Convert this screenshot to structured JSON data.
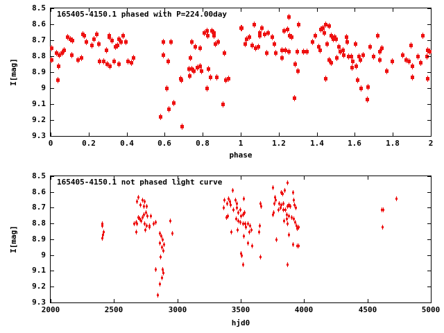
{
  "colors": {
    "marker": "#ee1111",
    "axis": "#000000",
    "background": "#ffffff"
  },
  "chart_data": [
    {
      "type": "scatter",
      "title": "165405-4150.1 phased with P=224.00day",
      "xlabel": "phase",
      "ylabel": "I[mag]",
      "xlim": [
        0,
        2
      ],
      "ylim": [
        8.5,
        9.3
      ],
      "y_axis_inverted_magnitudes": true,
      "grid": false,
      "legend": "none",
      "marker": "big",
      "xtick_values": [
        0,
        0.2,
        0.4,
        0.6,
        0.8,
        1,
        1.2,
        1.4,
        1.6,
        1.8,
        2
      ],
      "xtick_labels": [
        "0",
        "0.2",
        "0.4",
        "0.6",
        "0.8",
        "1",
        "1.2",
        "1.4",
        "1.6",
        "1.8",
        "2"
      ],
      "ytick_values": [
        8.5,
        8.6,
        8.7,
        8.8,
        8.9,
        9.0,
        9.1,
        9.2,
        9.3
      ],
      "ytick_labels": [
        "8.5",
        "8.6",
        "8.7",
        "8.8",
        "8.9",
        "9",
        "9.1",
        "9.2",
        "9.3"
      ],
      "points": [
        [
          0.003,
          8.82
        ],
        [
          0.005,
          8.75
        ],
        [
          0.029,
          8.78
        ],
        [
          0.035,
          8.95
        ],
        [
          0.041,
          8.86
        ],
        [
          0.044,
          8.79
        ],
        [
          0.059,
          8.78
        ],
        [
          0.068,
          8.76
        ],
        [
          0.087,
          8.68
        ],
        [
          0.102,
          8.69
        ],
        [
          0.108,
          8.79
        ],
        [
          0.114,
          8.7
        ],
        [
          0.144,
          8.82
        ],
        [
          0.16,
          8.81
        ],
        [
          0.168,
          8.66
        ],
        [
          0.177,
          8.67
        ],
        [
          0.187,
          8.71
        ],
        [
          0.217,
          8.73
        ],
        [
          0.225,
          8.69
        ],
        [
          0.241,
          8.66
        ],
        [
          0.251,
          8.72
        ],
        [
          0.257,
          8.83
        ],
        [
          0.278,
          8.83
        ],
        [
          0.293,
          8.76
        ],
        [
          0.296,
          8.85
        ],
        [
          0.305,
          8.67
        ],
        [
          0.308,
          8.68
        ],
        [
          0.31,
          8.86
        ],
        [
          0.32,
          8.7
        ],
        [
          0.332,
          8.83
        ],
        [
          0.338,
          8.74
        ],
        [
          0.35,
          8.73
        ],
        [
          0.356,
          8.85
        ],
        [
          0.356,
          8.69
        ],
        [
          0.368,
          8.71
        ],
        [
          0.378,
          8.67
        ],
        [
          0.393,
          8.71
        ],
        [
          0.405,
          8.83
        ],
        [
          0.423,
          8.84
        ],
        [
          0.435,
          8.81
        ],
        [
          0.577,
          9.18
        ],
        [
          0.593,
          8.71
        ],
        [
          0.593,
          8.79
        ],
        [
          0.608,
          9.0
        ],
        [
          0.617,
          8.83
        ],
        [
          0.619,
          9.13
        ],
        [
          0.633,
          8.71
        ],
        [
          0.645,
          9.09
        ],
        [
          0.681,
          8.94
        ],
        [
          0.686,
          8.95
        ],
        [
          0.69,
          9.24
        ],
        [
          0.726,
          8.88
        ],
        [
          0.73,
          8.92
        ],
        [
          0.735,
          8.81
        ],
        [
          0.742,
          8.71
        ],
        [
          0.742,
          8.88
        ],
        [
          0.753,
          8.89
        ],
        [
          0.76,
          8.74
        ],
        [
          0.771,
          8.87
        ],
        [
          0.783,
          8.75
        ],
        [
          0.783,
          8.86
        ],
        [
          0.793,
          8.89
        ],
        [
          0.807,
          8.65
        ],
        [
          0.82,
          8.64
        ],
        [
          0.82,
          9.0
        ],
        [
          0.823,
          8.67
        ],
        [
          0.827,
          8.88
        ],
        [
          0.841,
          8.93
        ],
        [
          0.847,
          8.64
        ],
        [
          0.856,
          8.67
        ],
        [
          0.859,
          8.65
        ],
        [
          0.865,
          8.72
        ],
        [
          0.871,
          8.93
        ],
        [
          0.88,
          8.71
        ],
        [
          0.905,
          9.1
        ],
        [
          0.914,
          8.78
        ],
        [
          0.92,
          8.95
        ],
        [
          0.933,
          8.94
        ],
        [
          0.999,
          8.62
        ],
        [
          1.003,
          8.62
        ],
        [
          1.023,
          8.72
        ],
        [
          1.029,
          8.69
        ],
        [
          1.044,
          8.68
        ],
        [
          1.059,
          8.73
        ],
        [
          1.068,
          8.6
        ],
        [
          1.075,
          8.75
        ],
        [
          1.09,
          8.74
        ],
        [
          1.1,
          8.65
        ],
        [
          1.1,
          8.67
        ],
        [
          1.108,
          8.62
        ],
        [
          1.124,
          8.66
        ],
        [
          1.136,
          8.78
        ],
        [
          1.141,
          8.65
        ],
        [
          1.163,
          8.68
        ],
        [
          1.177,
          8.72
        ],
        [
          1.181,
          8.78
        ],
        [
          1.217,
          8.81
        ],
        [
          1.217,
          8.76
        ],
        [
          1.225,
          8.64
        ],
        [
          1.235,
          8.76
        ],
        [
          1.245,
          8.63
        ],
        [
          1.25,
          8.77
        ],
        [
          1.251,
          8.55
        ],
        [
          1.257,
          8.67
        ],
        [
          1.265,
          8.68
        ],
        [
          1.281,
          9.06
        ],
        [
          1.286,
          8.85
        ],
        [
          1.294,
          8.77
        ],
        [
          1.298,
          8.89
        ],
        [
          1.302,
          8.6
        ],
        [
          1.33,
          8.77
        ],
        [
          1.347,
          8.77
        ],
        [
          1.375,
          8.71
        ],
        [
          1.39,
          8.67
        ],
        [
          1.407,
          8.74
        ],
        [
          1.417,
          8.76
        ],
        [
          1.419,
          8.63
        ],
        [
          1.429,
          8.62
        ],
        [
          1.439,
          8.65
        ],
        [
          1.444,
          8.94
        ],
        [
          1.447,
          8.6
        ],
        [
          1.451,
          8.72
        ],
        [
          1.463,
          8.61
        ],
        [
          1.463,
          8.82
        ],
        [
          1.475,
          8.67
        ],
        [
          1.475,
          8.84
        ],
        [
          1.484,
          8.69
        ],
        [
          1.492,
          8.68
        ],
        [
          1.499,
          8.69
        ],
        [
          1.504,
          8.81
        ],
        [
          1.515,
          8.74
        ],
        [
          1.523,
          8.77
        ],
        [
          1.537,
          8.76
        ],
        [
          1.539,
          8.79
        ],
        [
          1.555,
          8.68
        ],
        [
          1.559,
          8.71
        ],
        [
          1.567,
          8.8
        ],
        [
          1.579,
          8.8
        ],
        [
          1.583,
          8.87
        ],
        [
          1.588,
          8.83
        ],
        [
          1.604,
          8.72
        ],
        [
          1.607,
          8.86
        ],
        [
          1.612,
          8.95
        ],
        [
          1.62,
          8.8
        ],
        [
          1.628,
          8.82
        ],
        [
          1.632,
          9.0
        ],
        [
          1.644,
          8.79
        ],
        [
          1.664,
          9.07
        ],
        [
          1.668,
          8.99
        ],
        [
          1.68,
          8.74
        ],
        [
          1.697,
          8.8
        ],
        [
          1.719,
          8.67
        ],
        [
          1.731,
          8.77
        ],
        [
          1.731,
          8.82
        ],
        [
          1.741,
          8.75
        ],
        [
          1.765,
          8.89
        ],
        [
          1.794,
          8.83
        ],
        [
          1.85,
          8.79
        ],
        [
          1.87,
          8.82
        ],
        [
          1.882,
          8.83
        ],
        [
          1.894,
          8.73
        ],
        [
          1.903,
          8.86
        ],
        [
          1.903,
          8.93
        ],
        [
          1.931,
          8.8
        ],
        [
          1.947,
          8.84
        ],
        [
          1.956,
          8.67
        ],
        [
          1.979,
          8.8
        ],
        [
          1.983,
          8.76
        ],
        [
          1.983,
          8.94
        ],
        [
          1.992,
          8.77
        ]
      ]
    },
    {
      "type": "scatter",
      "title": "165405-4150.1 not phased light curve",
      "xlabel": "hjd0",
      "ylabel": "I[mag]",
      "xlim": [
        2000,
        5000
      ],
      "ylim": [
        8.5,
        9.3
      ],
      "y_axis_inverted_magnitudes": true,
      "grid": false,
      "legend": "none",
      "marker": "small",
      "xtick_values": [
        2000,
        2500,
        3000,
        3500,
        4000,
        4500,
        5000
      ],
      "xtick_labels": [
        "2000",
        "2500",
        "3000",
        "3500",
        "4000",
        "4500",
        "5000"
      ],
      "ytick_values": [
        8.5,
        8.6,
        8.7,
        8.8,
        8.9,
        9.0,
        9.1,
        9.2,
        9.3
      ],
      "ytick_labels": [
        "8.5",
        "8.6",
        "8.7",
        "8.8",
        "8.9",
        "9",
        "9.1",
        "9.2",
        "9.3"
      ],
      "points": [
        [
          2403,
          8.8
        ],
        [
          2407,
          8.81
        ],
        [
          2407,
          8.89
        ],
        [
          2411,
          8.87
        ],
        [
          2416,
          8.85
        ],
        [
          2658,
          8.8
        ],
        [
          2671,
          8.79
        ],
        [
          2671,
          8.85
        ],
        [
          2680,
          8.66
        ],
        [
          2680,
          8.8
        ],
        [
          2689,
          8.63
        ],
        [
          2689,
          8.76
        ],
        [
          2702,
          8.77
        ],
        [
          2707,
          8.68
        ],
        [
          2713,
          8.78
        ],
        [
          2720,
          8.65
        ],
        [
          2720,
          8.76
        ],
        [
          2731,
          8.69
        ],
        [
          2731,
          8.74
        ],
        [
          2738,
          8.66
        ],
        [
          2738,
          8.8
        ],
        [
          2744,
          8.84
        ],
        [
          2749,
          8.73
        ],
        [
          2753,
          8.81
        ],
        [
          2756,
          8.69
        ],
        [
          2762,
          8.75
        ],
        [
          2775,
          8.81
        ],
        [
          2780,
          8.82
        ],
        [
          2789,
          8.75
        ],
        [
          2811,
          8.8
        ],
        [
          2829,
          8.79
        ],
        [
          2829,
          9.09
        ],
        [
          2844,
          9.25
        ],
        [
          2858,
          8.92
        ],
        [
          2862,
          8.86
        ],
        [
          2862,
          9.18
        ],
        [
          2866,
          9.01
        ],
        [
          2871,
          8.88
        ],
        [
          2876,
          8.95
        ],
        [
          2876,
          9.14
        ],
        [
          2880,
          8.9
        ],
        [
          2880,
          9.09
        ],
        [
          2889,
          8.97
        ],
        [
          2889,
          9.11
        ],
        [
          2895,
          8.93
        ],
        [
          2944,
          8.78
        ],
        [
          2956,
          8.86
        ],
        [
          3364,
          8.7
        ],
        [
          3369,
          8.65
        ],
        [
          3387,
          8.76
        ],
        [
          3393,
          8.67
        ],
        [
          3396,
          8.75
        ],
        [
          3400,
          8.64
        ],
        [
          3414,
          8.66
        ],
        [
          3418,
          8.68
        ],
        [
          3424,
          8.85
        ],
        [
          3433,
          8.59
        ],
        [
          3442,
          8.71
        ],
        [
          3455,
          8.65
        ],
        [
          3460,
          8.77
        ],
        [
          3465,
          8.7
        ],
        [
          3469,
          8.67
        ],
        [
          3473,
          8.84
        ],
        [
          3478,
          8.73
        ],
        [
          3478,
          8.78
        ],
        [
          3496,
          8.71
        ],
        [
          3496,
          8.79
        ],
        [
          3502,
          8.75
        ],
        [
          3502,
          8.99
        ],
        [
          3505,
          9.0
        ],
        [
          3515,
          8.74
        ],
        [
          3515,
          8.8
        ],
        [
          3515,
          9.06
        ],
        [
          3520,
          8.64
        ],
        [
          3524,
          8.88
        ],
        [
          3527,
          8.73
        ],
        [
          3533,
          8.8
        ],
        [
          3538,
          8.82
        ],
        [
          3556,
          8.8
        ],
        [
          3556,
          8.92
        ],
        [
          3564,
          8.85
        ],
        [
          3569,
          8.81
        ],
        [
          3582,
          8.84
        ],
        [
          3587,
          8.94
        ],
        [
          3642,
          8.85
        ],
        [
          3647,
          8.81
        ],
        [
          3651,
          8.67
        ],
        [
          3655,
          9.01
        ],
        [
          3660,
          8.69
        ],
        [
          3751,
          8.57
        ],
        [
          3751,
          8.74
        ],
        [
          3760,
          8.73
        ],
        [
          3763,
          8.67
        ],
        [
          3769,
          8.63
        ],
        [
          3774,
          8.65
        ],
        [
          3778,
          8.9
        ],
        [
          3793,
          8.71
        ],
        [
          3800,
          8.67
        ],
        [
          3811,
          8.7
        ],
        [
          3818,
          8.6
        ],
        [
          3818,
          8.68
        ],
        [
          3829,
          8.61
        ],
        [
          3833,
          8.67
        ],
        [
          3836,
          8.71
        ],
        [
          3842,
          8.78
        ],
        [
          3847,
          8.59
        ],
        [
          3851,
          8.71
        ],
        [
          3860,
          8.74
        ],
        [
          3860,
          8.77
        ],
        [
          3865,
          8.54
        ],
        [
          3865,
          8.69
        ],
        [
          3865,
          8.8
        ],
        [
          3869,
          9.06
        ],
        [
          3878,
          8.68
        ],
        [
          3878,
          8.75
        ],
        [
          3878,
          8.87
        ],
        [
          3891,
          8.69
        ],
        [
          3902,
          8.76
        ],
        [
          3909,
          8.6
        ],
        [
          3909,
          8.93
        ],
        [
          3914,
          8.65
        ],
        [
          3914,
          8.77
        ],
        [
          3920,
          8.68
        ],
        [
          3927,
          8.79
        ],
        [
          3933,
          8.7
        ],
        [
          3938,
          8.81
        ],
        [
          3942,
          8.94
        ],
        [
          3945,
          8.83
        ],
        [
          3953,
          8.82
        ],
        [
          3953,
          8.94
        ],
        [
          4611,
          8.71
        ],
        [
          4618,
          8.82
        ],
        [
          4622,
          8.71
        ],
        [
          4725,
          8.64
        ]
      ]
    }
  ]
}
